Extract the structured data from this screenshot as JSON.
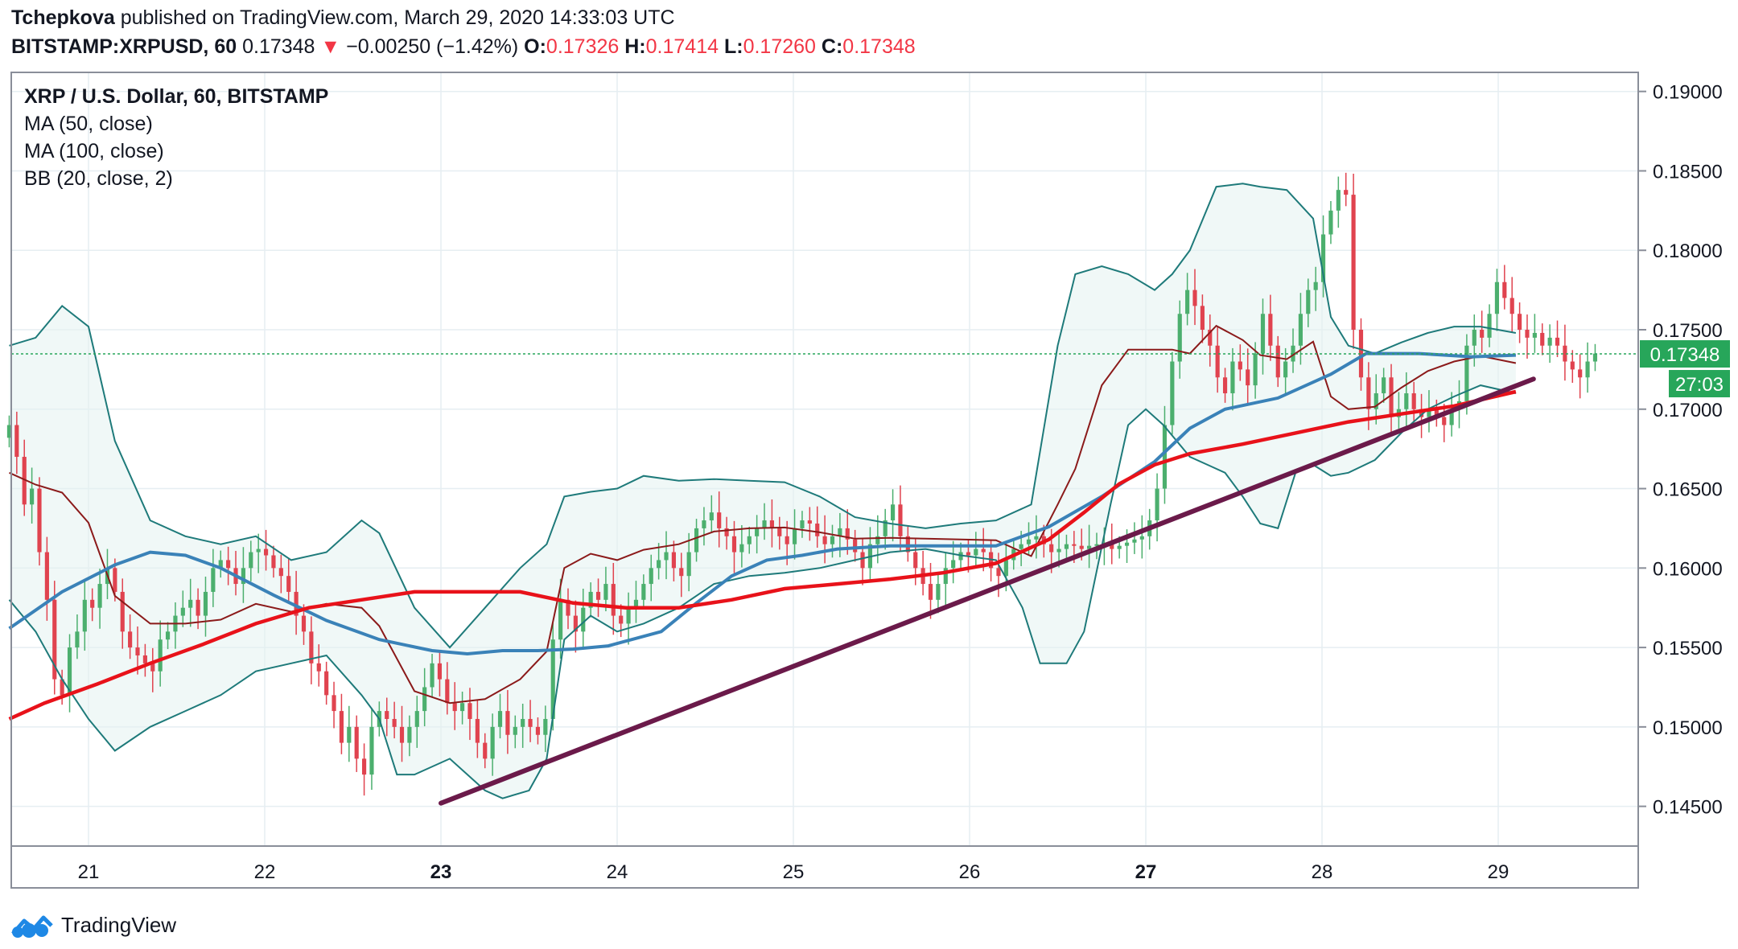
{
  "header": {
    "author": "Tchepkova",
    "published_text": "published on TradingView.com, March 29, 2020 14:33:03 UTC",
    "symbol": "BITSTAMP:XRPUSD, 60",
    "last": "0.17348",
    "change": "−0.00250 (−1.42%)",
    "o_label": "O:",
    "o": "0.17326",
    "h_label": "H:",
    "h": "0.17414",
    "l_label": "L:",
    "l": "0.17260",
    "c_label": "C:",
    "c": "0.17348"
  },
  "legend": {
    "title": "XRP / U.S. Dollar, 60, BITSTAMP",
    "ma50": "MA (50, close)",
    "ma100": "MA (100, close)",
    "bb": "BB (20, close, 2)"
  },
  "brand": {
    "name": "TradingView"
  },
  "colors": {
    "up": "#4caf6e",
    "down": "#e0434f",
    "ma50": "#3a82b8",
    "ma100": "#e8121a",
    "bb_band": "#1e7a7a",
    "bb_basis": "#8b1a1a",
    "trendline": "#6b1a4a",
    "last_price_bg": "#27a65a"
  },
  "chart_data": {
    "type": "candlestick",
    "y_axis": {
      "ylim": [
        0.1425,
        0.1912
      ],
      "ticks": [
        "0.19000",
        "0.18500",
        "0.18000",
        "0.17500",
        "0.17000",
        "0.16500",
        "0.16000",
        "0.15500",
        "0.15000",
        "0.14500"
      ],
      "tick_values": [
        0.19,
        0.185,
        0.18,
        0.175,
        0.17,
        0.165,
        0.16,
        0.155,
        0.15,
        0.145
      ]
    },
    "x_axis": {
      "ticks": [
        "21",
        "22",
        "23",
        "24",
        "25",
        "26",
        "27",
        "28",
        "29"
      ],
      "bold_ticks": [
        "23",
        "27"
      ],
      "tick_day_index": [
        0,
        1,
        2,
        3,
        4,
        5,
        6,
        7,
        8
      ]
    },
    "last_price_label": "0.17348",
    "last_price": 0.17348,
    "countdown_label": "27:03",
    "close_series": [
      0.169,
      0.167,
      0.164,
      0.165,
      0.161,
      0.158,
      0.153,
      0.152,
      0.155,
      0.156,
      0.158,
      0.1575,
      0.159,
      0.16,
      0.1585,
      0.156,
      0.155,
      0.1545,
      0.154,
      0.1535,
      0.1555,
      0.156,
      0.157,
      0.1575,
      0.158,
      0.157,
      0.1585,
      0.16,
      0.1605,
      0.16,
      0.159,
      0.16,
      0.161,
      0.1612,
      0.1608,
      0.16,
      0.1595,
      0.1585,
      0.157,
      0.156,
      0.154,
      0.1535,
      0.152,
      0.151,
      0.149,
      0.15,
      0.148,
      0.147,
      0.15,
      0.151,
      0.1505,
      0.15,
      0.149,
      0.15,
      0.151,
      0.1525,
      0.154,
      0.153,
      0.1515,
      0.151,
      0.1515,
      0.1505,
      0.149,
      0.148,
      0.15,
      0.151,
      0.1495,
      0.15,
      0.1505,
      0.15,
      0.1495,
      0.1505,
      0.1555,
      0.158,
      0.157,
      0.156,
      0.1575,
      0.1585,
      0.158,
      0.159,
      0.157,
      0.1565,
      0.1575,
      0.158,
      0.159,
      0.16,
      0.1605,
      0.161,
      0.16,
      0.1595,
      0.161,
      0.1625,
      0.163,
      0.1635,
      0.1625,
      0.162,
      0.161,
      0.1615,
      0.162,
      0.1625,
      0.163,
      0.1625,
      0.162,
      0.1615,
      0.1625,
      0.163,
      0.1628,
      0.162,
      0.1615,
      0.162,
      0.1625,
      0.1618,
      0.161,
      0.16,
      0.1615,
      0.162,
      0.163,
      0.164,
      0.162,
      0.161,
      0.16,
      0.159,
      0.158,
      0.159,
      0.16,
      0.1605,
      0.161,
      0.1608,
      0.1612,
      0.161,
      0.16,
      0.1595,
      0.1605,
      0.1612,
      0.1615,
      0.1618,
      0.162,
      0.1615,
      0.161,
      0.1612,
      0.1615,
      0.1614,
      0.1612,
      0.1614,
      0.1615,
      0.1616,
      0.1612,
      0.1614,
      0.1616,
      0.1618,
      0.162,
      0.163,
      0.165,
      0.169,
      0.173,
      0.176,
      0.1775,
      0.1765,
      0.175,
      0.174,
      0.172,
      0.171,
      0.173,
      0.1725,
      0.1715,
      0.1735,
      0.176,
      0.174,
      0.172,
      0.173,
      0.174,
      0.176,
      0.1775,
      0.178,
      0.181,
      0.1825,
      0.1838,
      0.1835,
      0.175,
      0.172,
      0.17,
      0.171,
      0.172,
      0.1695,
      0.17,
      0.171,
      0.17,
      0.1695,
      0.17,
      0.1695,
      0.169,
      0.17,
      0.1705,
      0.174,
      0.175,
      0.1745,
      0.176,
      0.178,
      0.177,
      0.176,
      0.175,
      0.1745,
      0.1748,
      0.174,
      0.1745,
      0.174,
      0.173,
      0.1725,
      0.172,
      0.173,
      0.1735
    ],
    "ma50": [
      [
        0,
        0.1562
      ],
      [
        0.3,
        0.1585
      ],
      [
        0.6,
        0.1602
      ],
      [
        0.8,
        0.161
      ],
      [
        1.0,
        0.1608
      ],
      [
        1.2,
        0.16
      ],
      [
        1.5,
        0.1583
      ],
      [
        1.8,
        0.1567
      ],
      [
        2.1,
        0.1555
      ],
      [
        2.4,
        0.1548
      ],
      [
        2.6,
        0.1546
      ],
      [
        2.8,
        0.1548
      ],
      [
        3.0,
        0.1548
      ],
      [
        3.2,
        0.1549
      ],
      [
        3.4,
        0.1551
      ],
      [
        3.7,
        0.156
      ],
      [
        3.9,
        0.1578
      ],
      [
        4.1,
        0.1595
      ],
      [
        4.3,
        0.1605
      ],
      [
        4.5,
        0.1608
      ],
      [
        4.7,
        0.1612
      ],
      [
        5.0,
        0.1614
      ],
      [
        5.3,
        0.1614
      ],
      [
        5.6,
        0.1614
      ],
      [
        5.9,
        0.1626
      ],
      [
        6.2,
        0.1645
      ],
      [
        6.5,
        0.1667
      ],
      [
        6.7,
        0.1688
      ],
      [
        6.9,
        0.17
      ],
      [
        7.2,
        0.1707
      ],
      [
        7.5,
        0.1722
      ],
      [
        7.7,
        0.1735
      ],
      [
        8.0,
        0.1735
      ],
      [
        8.3,
        0.1733
      ],
      [
        8.55,
        0.1734
      ]
    ],
    "ma100": [
      [
        0,
        0.1505
      ],
      [
        0.2,
        0.1515
      ],
      [
        0.5,
        0.1527
      ],
      [
        0.8,
        0.154
      ],
      [
        1.1,
        0.1552
      ],
      [
        1.4,
        0.1565
      ],
      [
        1.7,
        0.1575
      ],
      [
        2.0,
        0.158
      ],
      [
        2.3,
        0.1585
      ],
      [
        2.6,
        0.1585
      ],
      [
        2.9,
        0.1585
      ],
      [
        3.2,
        0.1578
      ],
      [
        3.5,
        0.1575
      ],
      [
        3.8,
        0.1575
      ],
      [
        4.1,
        0.158
      ],
      [
        4.4,
        0.1587
      ],
      [
        4.7,
        0.159
      ],
      [
        5.0,
        0.1593
      ],
      [
        5.3,
        0.1597
      ],
      [
        5.6,
        0.1603
      ],
      [
        5.9,
        0.1618
      ],
      [
        6.1,
        0.1635
      ],
      [
        6.3,
        0.1653
      ],
      [
        6.5,
        0.1665
      ],
      [
        6.7,
        0.1672
      ],
      [
        7.0,
        0.1678
      ],
      [
        7.3,
        0.1685
      ],
      [
        7.6,
        0.1692
      ],
      [
        7.9,
        0.1697
      ],
      [
        8.2,
        0.1702
      ],
      [
        8.55,
        0.1711
      ]
    ],
    "bb_upper": [
      [
        0,
        0.174
      ],
      [
        0.15,
        0.1745
      ],
      [
        0.3,
        0.1765
      ],
      [
        0.45,
        0.1752
      ],
      [
        0.6,
        0.168
      ],
      [
        0.8,
        0.163
      ],
      [
        1.0,
        0.162
      ],
      [
        1.2,
        0.1615
      ],
      [
        1.4,
        0.162
      ],
      [
        1.6,
        0.1605
      ],
      [
        1.8,
        0.161
      ],
      [
        2.0,
        0.163
      ],
      [
        2.1,
        0.1622
      ],
      [
        2.3,
        0.1575
      ],
      [
        2.5,
        0.155
      ],
      [
        2.7,
        0.1575
      ],
      [
        2.9,
        0.16
      ],
      [
        3.05,
        0.1615
      ],
      [
        3.15,
        0.1645
      ],
      [
        3.3,
        0.1648
      ],
      [
        3.45,
        0.165
      ],
      [
        3.6,
        0.1658
      ],
      [
        3.8,
        0.1655
      ],
      [
        4.0,
        0.1656
      ],
      [
        4.2,
        0.1655
      ],
      [
        4.4,
        0.1654
      ],
      [
        4.6,
        0.1645
      ],
      [
        4.8,
        0.1632
      ],
      [
        5.0,
        0.1628
      ],
      [
        5.2,
        0.1625
      ],
      [
        5.4,
        0.1628
      ],
      [
        5.6,
        0.163
      ],
      [
        5.8,
        0.164
      ],
      [
        5.95,
        0.174
      ],
      [
        6.05,
        0.1785
      ],
      [
        6.2,
        0.179
      ],
      [
        6.35,
        0.1785
      ],
      [
        6.5,
        0.1775
      ],
      [
        6.6,
        0.1785
      ],
      [
        6.7,
        0.18
      ],
      [
        6.85,
        0.184
      ],
      [
        7.0,
        0.1842
      ],
      [
        7.1,
        0.184
      ],
      [
        7.25,
        0.1838
      ],
      [
        7.4,
        0.182
      ],
      [
        7.5,
        0.1758
      ],
      [
        7.6,
        0.174
      ],
      [
        7.75,
        0.1735
      ],
      [
        7.9,
        0.1742
      ],
      [
        8.05,
        0.1748
      ],
      [
        8.2,
        0.1752
      ],
      [
        8.35,
        0.1752
      ],
      [
        8.55,
        0.1748
      ]
    ],
    "bb_lower": [
      [
        0,
        0.158
      ],
      [
        0.15,
        0.156
      ],
      [
        0.3,
        0.153
      ],
      [
        0.45,
        0.1505
      ],
      [
        0.6,
        0.1485
      ],
      [
        0.8,
        0.15
      ],
      [
        1.0,
        0.151
      ],
      [
        1.2,
        0.152
      ],
      [
        1.4,
        0.1535
      ],
      [
        1.6,
        0.154
      ],
      [
        1.8,
        0.1545
      ],
      [
        2.0,
        0.152
      ],
      [
        2.1,
        0.1505
      ],
      [
        2.2,
        0.147
      ],
      [
        2.3,
        0.147
      ],
      [
        2.5,
        0.148
      ],
      [
        2.7,
        0.146
      ],
      [
        2.8,
        0.1455
      ],
      [
        2.95,
        0.146
      ],
      [
        3.05,
        0.148
      ],
      [
        3.15,
        0.1555
      ],
      [
        3.3,
        0.157
      ],
      [
        3.45,
        0.156
      ],
      [
        3.6,
        0.1565
      ],
      [
        3.8,
        0.1575
      ],
      [
        4.0,
        0.159
      ],
      [
        4.2,
        0.1595
      ],
      [
        4.4,
        0.1597
      ],
      [
        4.6,
        0.16
      ],
      [
        4.8,
        0.1605
      ],
      [
        5.0,
        0.161
      ],
      [
        5.2,
        0.1612
      ],
      [
        5.4,
        0.1608
      ],
      [
        5.6,
        0.1605
      ],
      [
        5.75,
        0.1575
      ],
      [
        5.85,
        0.154
      ],
      [
        6.0,
        0.154
      ],
      [
        6.1,
        0.156
      ],
      [
        6.25,
        0.164
      ],
      [
        6.35,
        0.169
      ],
      [
        6.45,
        0.17
      ],
      [
        6.55,
        0.169
      ],
      [
        6.7,
        0.167
      ],
      [
        6.8,
        0.1665
      ],
      [
        6.9,
        0.166
      ],
      [
        7.0,
        0.1645
      ],
      [
        7.1,
        0.1628
      ],
      [
        7.2,
        0.1625
      ],
      [
        7.3,
        0.166
      ],
      [
        7.4,
        0.1665
      ],
      [
        7.5,
        0.1658
      ],
      [
        7.6,
        0.166
      ],
      [
        7.75,
        0.1668
      ],
      [
        7.9,
        0.1685
      ],
      [
        8.05,
        0.17
      ],
      [
        8.2,
        0.1708
      ],
      [
        8.35,
        0.1715
      ],
      [
        8.55,
        0.171
      ]
    ],
    "trendline": [
      [
        2.0,
        0.1452
      ],
      [
        8.65,
        0.1719
      ]
    ]
  }
}
